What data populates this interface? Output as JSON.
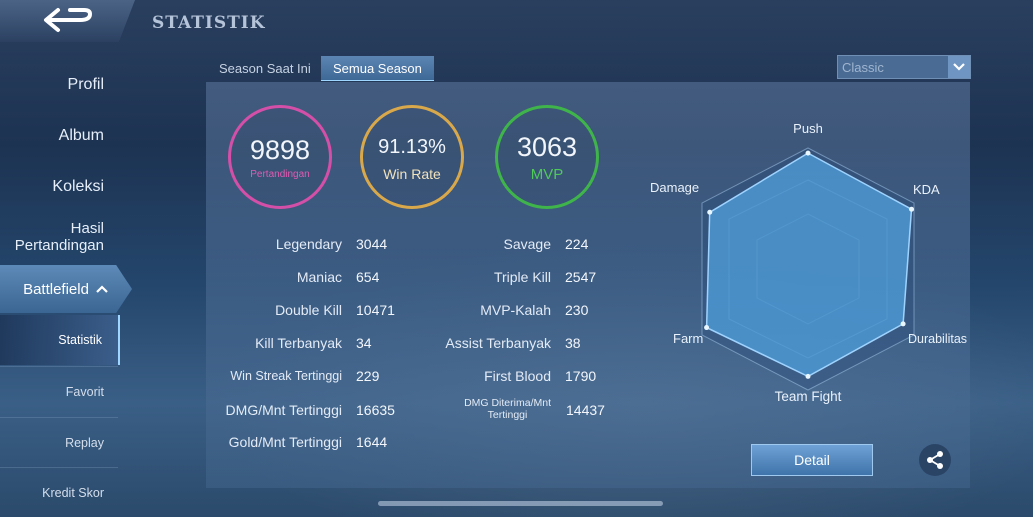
{
  "header": {
    "title": "STATISTIK"
  },
  "sidebar": {
    "items": [
      "Profil",
      "Album",
      "Koleksi",
      "Hasil\nPertandingan"
    ],
    "battlefield_label": "Battlefield",
    "sub_items": [
      "Statistik",
      "Favorit",
      "Replay",
      "Kredit Skor"
    ]
  },
  "tabs": [
    "Season Saat Ini",
    "Semua Season"
  ],
  "mode_select": {
    "value": "Classic"
  },
  "summary": {
    "matches": {
      "value": "9898",
      "label": "Pertandingan",
      "color": "#d44fa8"
    },
    "win_rate": {
      "value": "91.13%",
      "label": "Win Rate",
      "color": "#d9a84a"
    },
    "mvp": {
      "value": "3063",
      "label": "MVP",
      "color": "#3fb44a"
    }
  },
  "stats_left": [
    {
      "label": "Legendary",
      "value": "3044"
    },
    {
      "label": "Maniac",
      "value": "654"
    },
    {
      "label": "Double Kill",
      "value": "10471"
    },
    {
      "label": "Kill Terbanyak",
      "value": "34"
    },
    {
      "label": "Win Streak Tertinggi",
      "value": "229"
    },
    {
      "label": "DMG/Mnt Tertinggi",
      "value": "16635"
    },
    {
      "label": "Gold/Mnt Tertinggi",
      "value": "1644"
    }
  ],
  "stats_right": [
    {
      "label": "Savage",
      "value": "224"
    },
    {
      "label": "Triple Kill",
      "value": "2547"
    },
    {
      "label": "MVP-Kalah",
      "value": "230"
    },
    {
      "label": "Assist Terbanyak",
      "value": "38"
    },
    {
      "label": "First Blood",
      "value": "1790"
    },
    {
      "label": "DMG Diterima/Mnt\nTertinggi",
      "value": "14437"
    }
  ],
  "radar": {
    "labels": [
      "Push",
      "KDA",
      "Durabilitas",
      "Team Fight",
      "Farm",
      "Damage"
    ],
    "values": [
      0.95,
      0.98,
      0.9,
      0.88,
      0.96,
      0.93
    ]
  },
  "buttons": {
    "detail": "Detail"
  },
  "icons": {
    "back": "back-arrow-icon",
    "share": "share-icon",
    "dropdown": "chevron-down-icon"
  }
}
